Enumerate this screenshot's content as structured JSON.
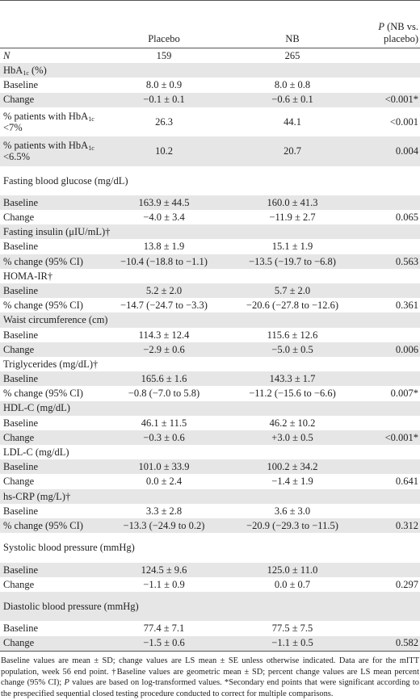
{
  "header": {
    "col_label": "",
    "col_placebo": "Placebo",
    "col_nb": "NB",
    "col_p": "P (NB vs. placebo)"
  },
  "rows": [
    {
      "type": "n",
      "label": "N",
      "placebo": "159",
      "nb": "265",
      "p": ""
    },
    {
      "type": "section",
      "label": "HbA1c (%)"
    },
    {
      "type": "sub",
      "label": "Baseline",
      "placebo": "8.0 ± 0.9",
      "nb": "8.0 ± 0.8",
      "p": ""
    },
    {
      "type": "sub",
      "label": "Change",
      "placebo": "−0.1 ± 0.1",
      "nb": "−0.6 ± 0.1",
      "p": "<0.001*"
    },
    {
      "type": "sub",
      "label": "% patients with HbA1c <7%",
      "placebo": "26.3",
      "nb": "44.1",
      "p": "<0.001",
      "tall": true
    },
    {
      "type": "sub",
      "label": "% patients with HbA1c <6.5%",
      "placebo": "10.2",
      "nb": "20.7",
      "p": "0.004",
      "tall": true
    },
    {
      "type": "section",
      "label": "Fasting blood glucose (mg/dL)",
      "tall": true
    },
    {
      "type": "sub",
      "label": "Baseline",
      "placebo": "163.9 ± 44.5",
      "nb": "160.0 ± 41.3",
      "p": ""
    },
    {
      "type": "sub",
      "label": "Change",
      "placebo": "−4.0 ± 3.4",
      "nb": "−11.9 ± 2.7",
      "p": "0.065"
    },
    {
      "type": "section",
      "label": "Fasting insulin (μIU/mL)†"
    },
    {
      "type": "sub",
      "label": "Baseline",
      "placebo": "13.8 ± 1.9",
      "nb": "15.1 ± 1.9",
      "p": ""
    },
    {
      "type": "sub",
      "label": "% change (95% CI)",
      "placebo": "−10.4 (−18.8 to −1.1)",
      "nb": "−13.5 (−19.7 to −6.8)",
      "p": "0.563"
    },
    {
      "type": "section",
      "label": "HOMA-IR†"
    },
    {
      "type": "sub",
      "label": "Baseline",
      "placebo": "5.2 ± 2.0",
      "nb": "5.7 ± 2.0",
      "p": ""
    },
    {
      "type": "sub",
      "label": "% change (95% CI)",
      "placebo": "−14.7 (−24.7 to −3.3)",
      "nb": "−20.6 (−27.8 to −12.6)",
      "p": "0.361"
    },
    {
      "type": "section",
      "label": "Waist circumference (cm)"
    },
    {
      "type": "sub",
      "label": "Baseline",
      "placebo": "114.3 ± 12.4",
      "nb": "115.6 ± 12.6",
      "p": ""
    },
    {
      "type": "sub",
      "label": "Change",
      "placebo": "−2.9 ± 0.6",
      "nb": "−5.0 ± 0.5",
      "p": "0.006"
    },
    {
      "type": "section",
      "label": "Triglycerides (mg/dL)†"
    },
    {
      "type": "sub",
      "label": "Baseline",
      "placebo": "165.6 ± 1.6",
      "nb": "143.3 ± 1.7",
      "p": ""
    },
    {
      "type": "sub",
      "label": "% change (95% CI)",
      "placebo": "−0.8 (−7.0 to 5.8)",
      "nb": "−11.2 (−15.6 to −6.6)",
      "p": "0.007*"
    },
    {
      "type": "section",
      "label": "HDL-C (mg/dL)"
    },
    {
      "type": "sub",
      "label": "Baseline",
      "placebo": "46.1 ± 11.5",
      "nb": "46.2 ± 10.2",
      "p": ""
    },
    {
      "type": "sub",
      "label": "Change",
      "placebo": "−0.3 ± 0.6",
      "nb": "+3.0 ± 0.5",
      "p": "<0.001*"
    },
    {
      "type": "section",
      "label": "LDL-C (mg/dL)"
    },
    {
      "type": "sub",
      "label": "Baseline",
      "placebo": "101.0 ± 33.9",
      "nb": "100.2 ± 34.2",
      "p": ""
    },
    {
      "type": "sub",
      "label": "Change",
      "placebo": "0.0 ± 2.4",
      "nb": "−1.4 ± 1.9",
      "p": "0.641"
    },
    {
      "type": "section",
      "label": "hs-CRP (mg/L)†"
    },
    {
      "type": "sub",
      "label": "Baseline",
      "placebo": "3.3 ± 2.8",
      "nb": "3.6 ± 3.0",
      "p": ""
    },
    {
      "type": "sub",
      "label": "% change (95% CI)",
      "placebo": "−13.3 (−24.9 to 0.2)",
      "nb": "−20.9 (−29.3 to −11.5)",
      "p": "0.312"
    },
    {
      "type": "section",
      "label": "Systolic blood pressure (mmHg)",
      "tall": true
    },
    {
      "type": "sub",
      "label": "Baseline",
      "placebo": "124.5 ± 9.6",
      "nb": "125.0 ± 11.0",
      "p": ""
    },
    {
      "type": "sub",
      "label": "Change",
      "placebo": "−1.1 ± 0.9",
      "nb": "0.0 ± 0.7",
      "p": "0.297"
    },
    {
      "type": "section",
      "label": "Diastolic blood pressure (mmHg)",
      "tall": true
    },
    {
      "type": "sub",
      "label": "Baseline",
      "placebo": "77.4 ± 7.1",
      "nb": "77.5 ± 7.5",
      "p": ""
    },
    {
      "type": "sub",
      "label": "Change",
      "placebo": "−1.5 ± 0.6",
      "nb": "−1.1 ± 0.5",
      "p": "0.582"
    }
  ],
  "footnote": "Baseline values are mean ± SD; change values are LS mean ± SE unless otherwise indicated. Data are for the mITT population, week 56 end point. †Baseline values are geometric mean ± SD; percent change values are LS mean percent change (95% CI); P values are based on log-transformed values. *Secondary end points that were significant according to the prespecified sequential closed testing procedure conducted to correct for multiple comparisons."
}
